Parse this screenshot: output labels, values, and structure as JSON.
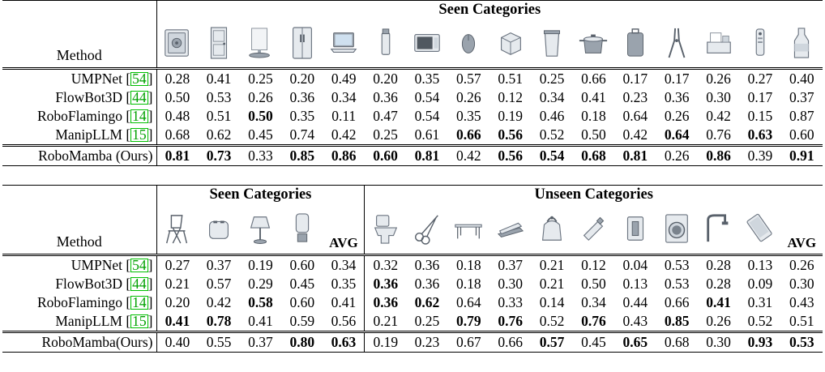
{
  "t1": {
    "method_label": "Method",
    "seen_label": "Seen Categories",
    "icons": [
      "safe-icon",
      "door-icon",
      "display-icon",
      "refrigerator-icon",
      "laptop-icon",
      "lighter-icon",
      "microwave-icon",
      "mouse-icon",
      "box-icon",
      "trashcan-icon",
      "pot-icon",
      "suitcase-icon",
      "pliers-icon",
      "printer-icon",
      "remote-icon",
      "bottle-icon"
    ],
    "rows": [
      {
        "name": "UMPNet",
        "ref": "54",
        "vals": [
          "0.28",
          "0.41",
          "0.25",
          "0.20",
          "0.49",
          "0.20",
          "0.35",
          "0.57",
          "0.51",
          "0.25",
          "0.66",
          "0.17",
          "0.17",
          "0.26",
          "0.27",
          "0.40"
        ],
        "bold": []
      },
      {
        "name": "FlowBot3D",
        "ref": "44",
        "vals": [
          "0.50",
          "0.53",
          "0.26",
          "0.36",
          "0.34",
          "0.36",
          "0.54",
          "0.26",
          "0.12",
          "0.34",
          "0.41",
          "0.23",
          "0.36",
          "0.30",
          "0.17",
          "0.37"
        ],
        "bold": []
      },
      {
        "name": "RoboFlamingo",
        "ref": "14",
        "vals": [
          "0.48",
          "0.51",
          "0.50",
          "0.35",
          "0.11",
          "0.47",
          "0.54",
          "0.35",
          "0.19",
          "0.46",
          "0.18",
          "0.64",
          "0.26",
          "0.42",
          "0.15",
          "0.87"
        ],
        "bold": [
          2
        ]
      },
      {
        "name": "ManipLLM",
        "ref": "15",
        "vals": [
          "0.68",
          "0.62",
          "0.45",
          "0.74",
          "0.42",
          "0.25",
          "0.61",
          "0.66",
          "0.56",
          "0.52",
          "0.50",
          "0.42",
          "0.64",
          "0.76",
          "0.63",
          "0.60"
        ],
        "bold": [
          7,
          8,
          12,
          14
        ]
      },
      {
        "name": "RoboMamba (Ours)",
        "ref": "",
        "vals": [
          "0.81",
          "0.73",
          "0.33",
          "0.85",
          "0.86",
          "0.60",
          "0.81",
          "0.42",
          "0.56",
          "0.54",
          "0.68",
          "0.81",
          "0.26",
          "0.86",
          "0.39",
          "0.91"
        ],
        "bold": [
          0,
          1,
          3,
          4,
          5,
          6,
          8,
          9,
          10,
          11,
          13,
          15
        ]
      }
    ]
  },
  "t2": {
    "method_label": "Method",
    "seen_label": "Seen Categories",
    "unseen_label": "Unseen Categories",
    "avg_label": "AVG",
    "seen_icons": [
      "chair-icon",
      "toaster-icon",
      "lamp-icon",
      "dispenser-icon"
    ],
    "unseen_icons": [
      "toilet-icon",
      "scissors-icon",
      "table-icon",
      "stapler-icon",
      "kettle-icon",
      "usb-icon",
      "switch-icon",
      "washer-icon",
      "faucet-icon",
      "phone-icon"
    ],
    "rows": [
      {
        "name": "UMPNet",
        "ref": "54",
        "vals": [
          "0.27",
          "0.37",
          "0.19",
          "0.60",
          "0.34",
          "0.32",
          "0.36",
          "0.18",
          "0.37",
          "0.21",
          "0.12",
          "0.04",
          "0.53",
          "0.28",
          "0.13",
          "0.26"
        ],
        "bold": []
      },
      {
        "name": "FlowBot3D",
        "ref": "44",
        "vals": [
          "0.21",
          "0.57",
          "0.29",
          "0.45",
          "0.35",
          "0.36",
          "0.36",
          "0.18",
          "0.30",
          "0.21",
          "0.50",
          "0.13",
          "0.53",
          "0.28",
          "0.09",
          "0.30"
        ],
        "bold": [
          5
        ]
      },
      {
        "name": "RoboFlamingo",
        "ref": "14",
        "vals": [
          "0.20",
          "0.42",
          "0.58",
          "0.60",
          "0.41",
          "0.36",
          "0.62",
          "0.64",
          "0.33",
          "0.14",
          "0.34",
          "0.44",
          "0.66",
          "0.41",
          "0.31",
          "0.43"
        ],
        "bold": [
          2,
          5,
          6,
          13
        ]
      },
      {
        "name": "ManipLLM",
        "ref": "15",
        "vals": [
          "0.41",
          "0.78",
          "0.41",
          "0.59",
          "0.56",
          "0.21",
          "0.25",
          "0.79",
          "0.76",
          "0.52",
          "0.76",
          "0.43",
          "0.85",
          "0.26",
          "0.52",
          "0.51"
        ],
        "bold": [
          0,
          1,
          7,
          8,
          10,
          12
        ]
      },
      {
        "name": "RoboMamba(Ours)",
        "ref": "",
        "vals": [
          "0.40",
          "0.55",
          "0.37",
          "0.80",
          "0.63",
          "0.19",
          "0.23",
          "0.67",
          "0.66",
          "0.57",
          "0.45",
          "0.65",
          "0.68",
          "0.30",
          "0.93",
          "0.53"
        ],
        "bold": [
          3,
          4,
          9,
          11,
          14,
          15
        ]
      }
    ]
  }
}
